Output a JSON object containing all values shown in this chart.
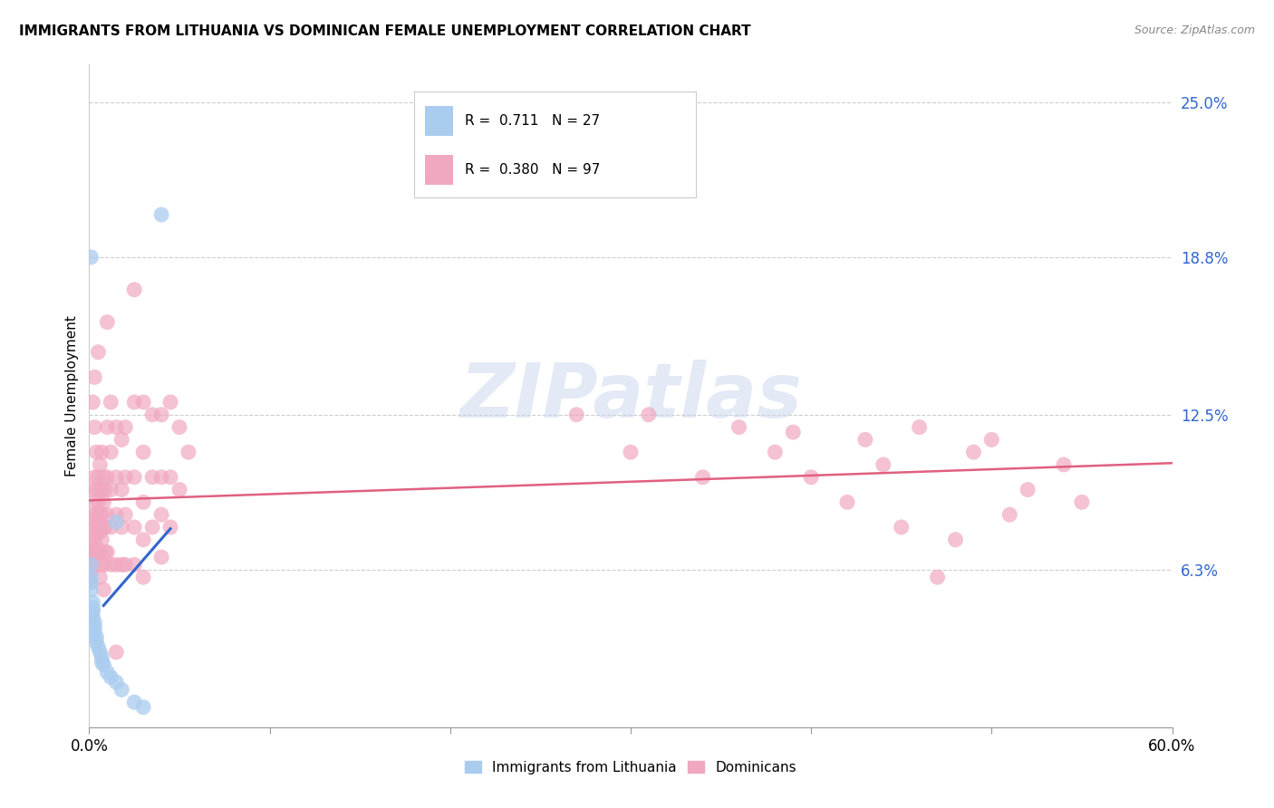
{
  "title": "IMMIGRANTS FROM LITHUANIA VS DOMINICAN FEMALE UNEMPLOYMENT CORRELATION CHART",
  "source": "Source: ZipAtlas.com",
  "ylabel": "Female Unemployment",
  "y_ticks": [
    0.0,
    0.063,
    0.125,
    0.188,
    0.25
  ],
  "y_tick_labels": [
    "",
    "6.3%",
    "12.5%",
    "18.8%",
    "25.0%"
  ],
  "x_range": [
    0.0,
    0.6
  ],
  "y_range": [
    0.0,
    0.265
  ],
  "color_blue": "#aaccee",
  "color_pink": "#f0a8c0",
  "line_blue": "#3366cc",
  "line_pink": "#e06080",
  "watermark": "ZIPatlas",
  "lithuania_points": [
    [
      0.001,
      0.188
    ],
    [
      0.04,
      0.205
    ],
    [
      0.015,
      0.082
    ],
    [
      0.001,
      0.065
    ],
    [
      0.001,
      0.06
    ],
    [
      0.001,
      0.058
    ],
    [
      0.001,
      0.055
    ],
    [
      0.002,
      0.05
    ],
    [
      0.002,
      0.048
    ],
    [
      0.002,
      0.046
    ],
    [
      0.002,
      0.044
    ],
    [
      0.003,
      0.042
    ],
    [
      0.003,
      0.04
    ],
    [
      0.003,
      0.038
    ],
    [
      0.004,
      0.036
    ],
    [
      0.004,
      0.034
    ],
    [
      0.005,
      0.032
    ],
    [
      0.006,
      0.03
    ],
    [
      0.007,
      0.028
    ],
    [
      0.007,
      0.026
    ],
    [
      0.008,
      0.025
    ],
    [
      0.01,
      0.022
    ],
    [
      0.012,
      0.02
    ],
    [
      0.015,
      0.018
    ],
    [
      0.018,
      0.015
    ],
    [
      0.025,
      0.01
    ],
    [
      0.03,
      0.008
    ]
  ],
  "dominican_points": [
    [
      0.001,
      0.075
    ],
    [
      0.001,
      0.068
    ],
    [
      0.001,
      0.065
    ],
    [
      0.001,
      0.062
    ],
    [
      0.001,
      0.058
    ],
    [
      0.002,
      0.13
    ],
    [
      0.002,
      0.095
    ],
    [
      0.002,
      0.082
    ],
    [
      0.002,
      0.072
    ],
    [
      0.002,
      0.068
    ],
    [
      0.002,
      0.064
    ],
    [
      0.003,
      0.14
    ],
    [
      0.003,
      0.12
    ],
    [
      0.003,
      0.1
    ],
    [
      0.003,
      0.09
    ],
    [
      0.003,
      0.085
    ],
    [
      0.003,
      0.08
    ],
    [
      0.003,
      0.075
    ],
    [
      0.003,
      0.07
    ],
    [
      0.004,
      0.11
    ],
    [
      0.004,
      0.095
    ],
    [
      0.004,
      0.085
    ],
    [
      0.004,
      0.078
    ],
    [
      0.004,
      0.072
    ],
    [
      0.004,
      0.068
    ],
    [
      0.005,
      0.15
    ],
    [
      0.005,
      0.1
    ],
    [
      0.005,
      0.09
    ],
    [
      0.005,
      0.08
    ],
    [
      0.005,
      0.07
    ],
    [
      0.006,
      0.105
    ],
    [
      0.006,
      0.095
    ],
    [
      0.006,
      0.085
    ],
    [
      0.006,
      0.078
    ],
    [
      0.006,
      0.07
    ],
    [
      0.006,
      0.06
    ],
    [
      0.007,
      0.11
    ],
    [
      0.007,
      0.095
    ],
    [
      0.007,
      0.085
    ],
    [
      0.007,
      0.075
    ],
    [
      0.007,
      0.065
    ],
    [
      0.008,
      0.1
    ],
    [
      0.008,
      0.09
    ],
    [
      0.008,
      0.08
    ],
    [
      0.008,
      0.065
    ],
    [
      0.008,
      0.055
    ],
    [
      0.009,
      0.095
    ],
    [
      0.009,
      0.08
    ],
    [
      0.009,
      0.07
    ],
    [
      0.01,
      0.162
    ],
    [
      0.01,
      0.12
    ],
    [
      0.01,
      0.1
    ],
    [
      0.01,
      0.085
    ],
    [
      0.01,
      0.07
    ],
    [
      0.012,
      0.13
    ],
    [
      0.012,
      0.11
    ],
    [
      0.012,
      0.095
    ],
    [
      0.012,
      0.08
    ],
    [
      0.012,
      0.065
    ],
    [
      0.015,
      0.12
    ],
    [
      0.015,
      0.1
    ],
    [
      0.015,
      0.085
    ],
    [
      0.015,
      0.065
    ],
    [
      0.015,
      0.03
    ],
    [
      0.018,
      0.115
    ],
    [
      0.018,
      0.095
    ],
    [
      0.018,
      0.08
    ],
    [
      0.018,
      0.065
    ],
    [
      0.02,
      0.12
    ],
    [
      0.02,
      0.1
    ],
    [
      0.02,
      0.085
    ],
    [
      0.02,
      0.065
    ],
    [
      0.025,
      0.175
    ],
    [
      0.025,
      0.13
    ],
    [
      0.025,
      0.1
    ],
    [
      0.025,
      0.08
    ],
    [
      0.025,
      0.065
    ],
    [
      0.03,
      0.13
    ],
    [
      0.03,
      0.11
    ],
    [
      0.03,
      0.09
    ],
    [
      0.03,
      0.075
    ],
    [
      0.03,
      0.06
    ],
    [
      0.035,
      0.125
    ],
    [
      0.035,
      0.1
    ],
    [
      0.035,
      0.08
    ],
    [
      0.04,
      0.125
    ],
    [
      0.04,
      0.1
    ],
    [
      0.04,
      0.085
    ],
    [
      0.04,
      0.068
    ],
    [
      0.045,
      0.13
    ],
    [
      0.045,
      0.1
    ],
    [
      0.045,
      0.08
    ],
    [
      0.05,
      0.12
    ],
    [
      0.05,
      0.095
    ],
    [
      0.055,
      0.11
    ],
    [
      0.27,
      0.125
    ],
    [
      0.3,
      0.11
    ],
    [
      0.31,
      0.125
    ],
    [
      0.34,
      0.1
    ],
    [
      0.36,
      0.12
    ],
    [
      0.38,
      0.11
    ],
    [
      0.39,
      0.118
    ],
    [
      0.4,
      0.1
    ],
    [
      0.42,
      0.09
    ],
    [
      0.43,
      0.115
    ],
    [
      0.44,
      0.105
    ],
    [
      0.45,
      0.08
    ],
    [
      0.46,
      0.12
    ],
    [
      0.47,
      0.06
    ],
    [
      0.48,
      0.075
    ],
    [
      0.49,
      0.11
    ],
    [
      0.5,
      0.115
    ],
    [
      0.51,
      0.085
    ],
    [
      0.52,
      0.095
    ],
    [
      0.54,
      0.105
    ],
    [
      0.55,
      0.09
    ]
  ]
}
